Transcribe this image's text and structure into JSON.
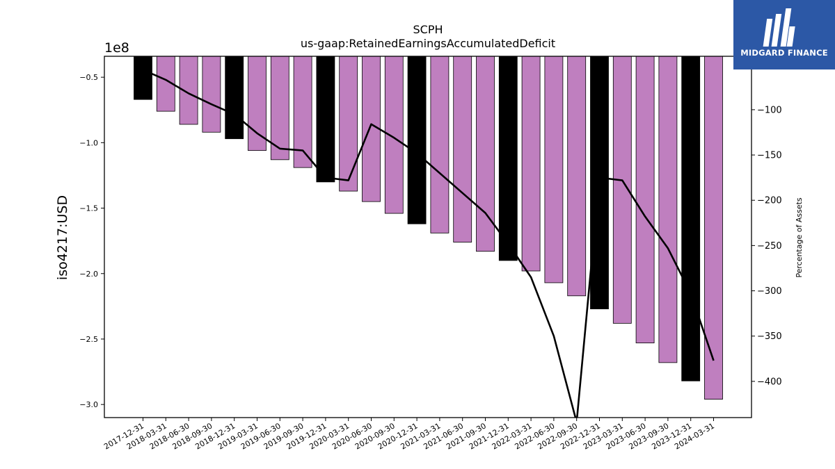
{
  "chart_data": {
    "type": "bar",
    "title": "SCPH",
    "subtitle": "us-gaap:RetainedEarningsAccumulatedDeficit",
    "ylabel": "iso4217:USD",
    "y_multiplier": "1e8",
    "y2label": "Percentage of Assets",
    "categories": [
      "2017-12-31",
      "2018-03-31",
      "2018-06-30",
      "2018-09-30",
      "2018-12-31",
      "2019-03-31",
      "2019-06-30",
      "2019-09-30",
      "2019-12-31",
      "2020-03-31",
      "2020-06-30",
      "2020-09-30",
      "2020-12-31",
      "2021-03-31",
      "2021-06-30",
      "2021-09-30",
      "2021-12-31",
      "2022-03-31",
      "2022-06-30",
      "2022-09-30",
      "2022-12-31",
      "2023-03-31",
      "2023-06-30",
      "2023-09-30",
      "2023-12-31",
      "2024-03-31"
    ],
    "values": [
      -0.67,
      -0.76,
      -0.86,
      -0.92,
      -0.97,
      -1.06,
      -1.13,
      -1.19,
      -1.3,
      -1.37,
      -1.45,
      -1.54,
      -1.62,
      -1.69,
      -1.76,
      -1.83,
      -1.9,
      -1.98,
      -2.07,
      -2.17,
      -2.27,
      -2.38,
      -2.53,
      -2.68,
      -2.82,
      -2.96
    ],
    "year_end_categories": [
      "2017-12-31",
      "2018-12-31",
      "2019-12-31",
      "2020-12-31",
      "2021-12-31",
      "2022-12-31",
      "2023-12-31"
    ],
    "pct_of_assets": [
      -56,
      -67,
      -82,
      -94,
      -105,
      -126,
      -143,
      -145,
      -175,
      -178,
      -116,
      -131,
      -148,
      -170,
      -192,
      -214,
      -248,
      -285,
      -350,
      -445,
      -175,
      -178,
      -218,
      -253,
      -303,
      -377
    ],
    "ylim": [
      -3.1,
      -0.34
    ],
    "y2lim": [
      -440,
      -41
    ],
    "yticks": [
      -0.5,
      -1.0,
      -1.5,
      -2.0,
      -2.5,
      -3.0
    ],
    "y2ticks": [
      -50,
      -100,
      -150,
      -200,
      -250,
      -300,
      -350,
      -400
    ],
    "colors": {
      "quarter_bar": "#bf7fbf",
      "year_end_bar": "#000000",
      "line": "#000000"
    }
  },
  "logo": {
    "name": "MIDGARD FINANCE"
  }
}
